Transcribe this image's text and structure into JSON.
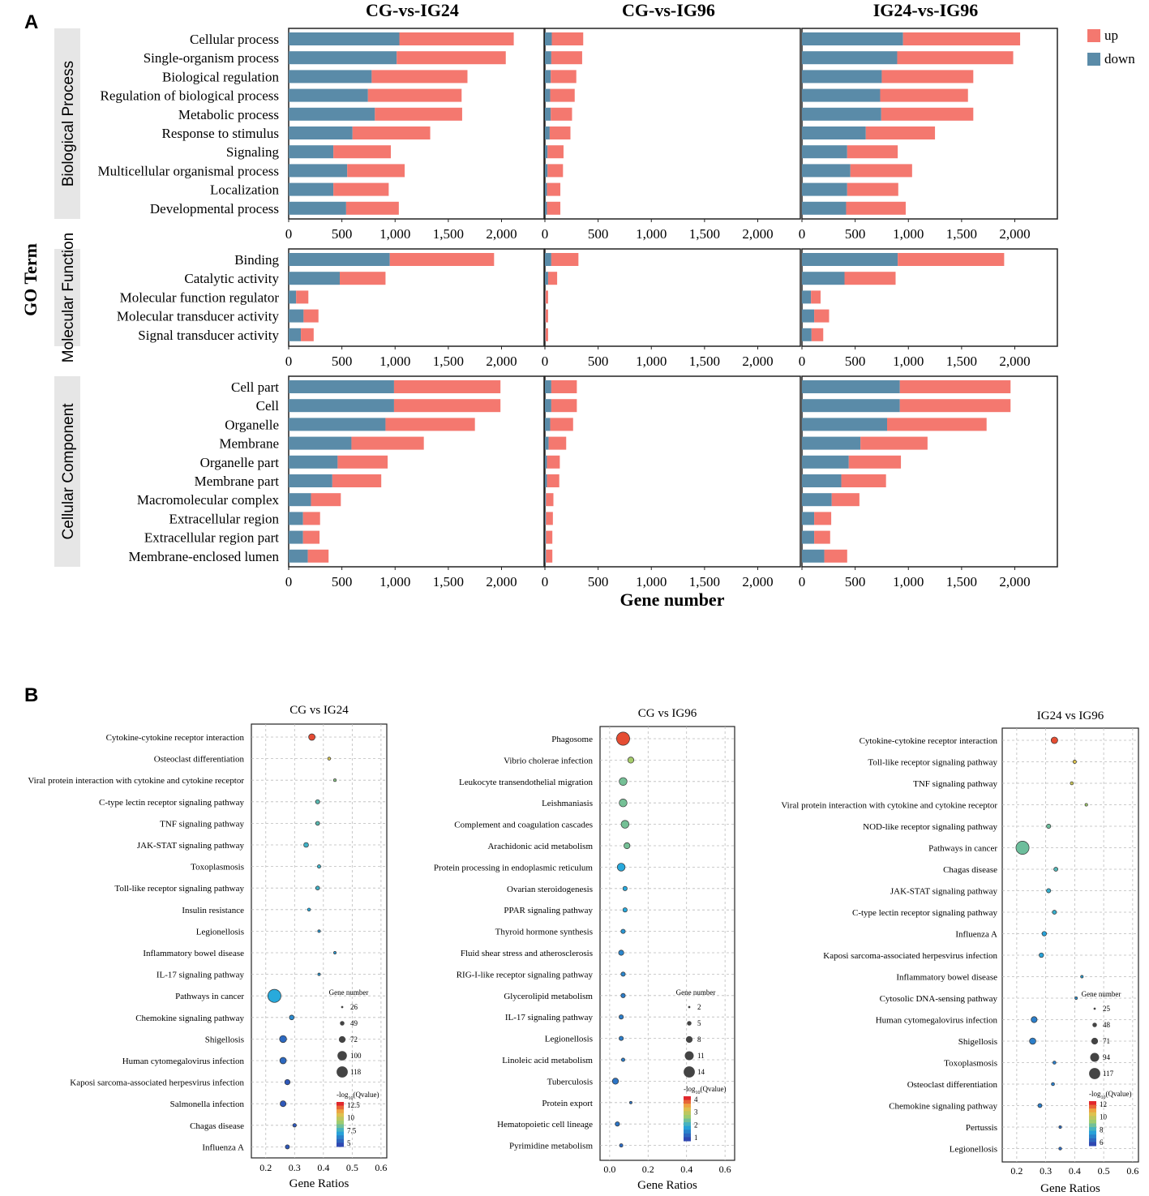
{
  "panel_labels": [
    "A",
    "B"
  ],
  "chart_data": [
    {
      "panel": "A",
      "type": "bar",
      "stacked": true,
      "orientation": "horizontal",
      "ylabel": "GO Term",
      "xlabel": "Gene number",
      "xlim": [
        0,
        2400
      ],
      "xticks": [
        0,
        500,
        1000,
        1500,
        2000
      ],
      "xtick_labels": [
        "0",
        "500",
        "1,000",
        "1,500",
        "2,000"
      ],
      "legend": {
        "position": "top-right",
        "entries": [
          {
            "name": "up",
            "color": "#f4786f"
          },
          {
            "name": "down",
            "color": "#5a8ba8"
          }
        ]
      },
      "comparisons": [
        "CG-vs-IG24",
        "CG-vs-IG96",
        "IG24-vs-IG96"
      ],
      "groups": [
        {
          "name": "Biological Process",
          "terms": [
            "Cellular process",
            "Single-organism process",
            "Biological regulation",
            "Regulation of biological process",
            "Metabolic process",
            "Response to stimulus",
            "Signaling",
            "Multicellular organismal process",
            "Localization",
            "Developmental process"
          ],
          "down": [
            [
              1040,
              1015,
              780,
              745,
              810,
              600,
              420,
              550,
              420,
              540
            ],
            [
              65,
              60,
              55,
              50,
              55,
              45,
              25,
              25,
              20,
              20
            ],
            [
              950,
              895,
              750,
              735,
              745,
              600,
              425,
              455,
              425,
              415
            ]
          ],
          "up": [
            [
              1075,
              1025,
              900,
              880,
              820,
              730,
              540,
              540,
              520,
              495
            ],
            [
              295,
              290,
              240,
              230,
              200,
              195,
              150,
              145,
              125,
              125
            ],
            [
              1100,
              1090,
              860,
              825,
              865,
              650,
              475,
              580,
              480,
              560
            ]
          ]
        },
        {
          "name": "Molecular Function",
          "terms": [
            "Binding",
            "Catalytic activity",
            "Molecular function regulator",
            "Molecular transducer activity",
            "Signal transducer activity"
          ],
          "down": [
            [
              950,
              480,
              70,
              140,
              115
            ],
            [
              60,
              30,
              5,
              5,
              5
            ],
            [
              900,
              400,
              85,
              115,
              90
            ]
          ],
          "up": [
            [
              980,
              430,
              115,
              140,
              120
            ],
            [
              255,
              85,
              25,
              25,
              25
            ],
            [
              1000,
              480,
              90,
              140,
              110
            ]
          ]
        },
        {
          "name": "Cellular Component",
          "terms": [
            "Cell part",
            "Cell",
            "Organelle",
            "Membrane",
            "Organelle part",
            "Membrane part",
            "Macromolecular complex",
            "Extracellular region",
            "Extracellular region part",
            "Membrane-enclosed lumen"
          ],
          "down": [
            [
              990,
              990,
              910,
              590,
              460,
              410,
              210,
              135,
              135,
              180
            ],
            [
              60,
              60,
              50,
              35,
              20,
              20,
              10,
              10,
              10,
              10
            ],
            [
              920,
              920,
              800,
              550,
              440,
              370,
              280,
              115,
              115,
              210
            ]
          ],
          "up": [
            [
              1000,
              1000,
              840,
              680,
              470,
              460,
              280,
              160,
              155,
              195
            ],
            [
              240,
              240,
              215,
              165,
              120,
              115,
              70,
              65,
              60,
              60
            ],
            [
              1040,
              1040,
              935,
              630,
              490,
              420,
              260,
              160,
              150,
              215
            ]
          ]
        }
      ]
    },
    {
      "panel": "B",
      "type": "scatter",
      "title": "CG vs IG24",
      "xlabel": "Gene Ratios",
      "xlim": [
        0.15,
        0.62
      ],
      "xticks": [
        0.2,
        0.3,
        0.4,
        0.5,
        0.6
      ],
      "xtick_labels": [
        "0.2",
        "0.3",
        "0.4",
        "0.5",
        "0.6"
      ],
      "size_legend_title": "Gene number",
      "size_legend": [
        26,
        49,
        72,
        100,
        118
      ],
      "size_range": [
        26,
        118
      ],
      "color_legend_title": "-log10(Qvalue)",
      "color_ticks": [
        "12.5",
        "10",
        "7.5",
        "5"
      ],
      "color_range": [
        4,
        14
      ],
      "terms": [
        "Cytokine-cytokine receptor interaction",
        "Osteoclast differentiation",
        "Viral protein interaction with cytokine and cytokine receptor",
        "C-type lectin receptor signaling pathway",
        "TNF signaling pathway",
        "JAK-STAT signaling pathway",
        "Toxoplasmosis",
        "Toll-like receptor signaling pathway",
        "Insulin resistance",
        "Legionellosis",
        "Inflammatory bowel disease",
        "IL-17 signaling pathway",
        "Pathways in cancer",
        "Chemokine signaling pathway",
        "Shigellosis",
        "Human cytomegalovirus infection",
        "Kaposi sarcoma-associated herpesvirus infection",
        "Salmonella infection",
        "Chagas disease",
        "Influenza A"
      ],
      "x": [
        0.36,
        0.42,
        0.44,
        0.38,
        0.38,
        0.34,
        0.385,
        0.38,
        0.35,
        0.385,
        0.44,
        0.385,
        0.23,
        0.29,
        0.26,
        0.26,
        0.275,
        0.26,
        0.3,
        0.275
      ],
      "gene_number": [
        60,
        30,
        27,
        40,
        38,
        45,
        33,
        38,
        30,
        27,
        26,
        26,
        118,
        45,
        65,
        60,
        50,
        55,
        35,
        40
      ],
      "neg_log10_q": [
        13.5,
        11,
        9,
        8,
        8,
        7.5,
        7.5,
        7.5,
        7,
        6.5,
        6.5,
        6.5,
        7,
        6,
        5,
        5,
        4.5,
        4.5,
        4.5,
        4.5
      ]
    },
    {
      "panel": "B",
      "type": "scatter",
      "title": "CG vs IG96",
      "xlabel": "Gene Ratios",
      "xlim": [
        -0.05,
        0.65
      ],
      "xticks": [
        0.0,
        0.2,
        0.4,
        0.6
      ],
      "xtick_labels": [
        "0.0",
        "0.2",
        "0.4",
        "0.6"
      ],
      "size_legend_title": "Gene number",
      "size_legend": [
        2,
        5,
        8,
        11,
        14
      ],
      "size_range": [
        2,
        14
      ],
      "color_legend_title": "-log10(Qvalue)",
      "color_ticks": [
        "4",
        "3",
        "2",
        "1"
      ],
      "color_range": [
        0.5,
        4.2
      ],
      "terms": [
        "Phagosome",
        "Vibrio cholerae infection",
        "Leukocyte transendothelial migration",
        "Leishmaniasis",
        "Complement and coagulation cascades",
        "Arachidonic acid metabolism",
        "Protein processing in endoplasmic reticulum",
        "Ovarian steroidogenesis",
        "PPAR signaling pathway",
        "Thyroid hormone synthesis",
        "Fluid shear stress and atherosclerosis",
        "RIG-I-like receptor signaling pathway",
        "Glycerolipid metabolism",
        "IL-17 signaling pathway",
        "Legionellosis",
        "Linoleic acid metabolism",
        "Tuberculosis",
        "Protein export",
        "Hematopoietic cell lineage",
        "Pyrimidine metabolism"
      ],
      "x": [
        0.07,
        0.11,
        0.07,
        0.07,
        0.08,
        0.09,
        0.06,
        0.08,
        0.08,
        0.07,
        0.06,
        0.07,
        0.07,
        0.06,
        0.06,
        0.07,
        0.03,
        0.11,
        0.04,
        0.06
      ],
      "gene_number": [
        14,
        6,
        8,
        8,
        8,
        6,
        8,
        4,
        4,
        4,
        5,
        4,
        4,
        4,
        4,
        3,
        6,
        2,
        4,
        3
      ],
      "neg_log10_q": [
        4,
        2.6,
        2.2,
        2.2,
        2.2,
        2.2,
        1.6,
        1.6,
        1.6,
        1.4,
        1.2,
        1.2,
        1.1,
        1.1,
        1.1,
        1.1,
        1,
        1,
        1,
        0.9
      ]
    },
    {
      "panel": "B",
      "type": "scatter",
      "title": "IG24 vs IG96",
      "xlabel": "Gene Ratios",
      "xlim": [
        0.15,
        0.62
      ],
      "xticks": [
        0.2,
        0.3,
        0.4,
        0.5,
        0.6
      ],
      "xtick_labels": [
        "0.2",
        "0.3",
        "0.4",
        "0.5",
        "0.6"
      ],
      "size_legend_title": "Gene number",
      "size_legend": [
        25,
        48,
        71,
        94,
        117
      ],
      "size_range": [
        25,
        117
      ],
      "color_legend_title": "-log10(Qvalue)",
      "color_ticks": [
        "12",
        "10",
        "8",
        "6"
      ],
      "color_range": [
        4,
        13
      ],
      "terms": [
        "Cytokine-cytokine receptor interaction",
        "Toll-like receptor signaling pathway",
        "TNF signaling pathway",
        "Viral protein interaction with cytokine and cytokine receptor",
        "NOD-like receptor signaling pathway",
        "Pathways in cancer",
        "Chagas disease",
        "JAK-STAT signaling pathway",
        "C-type lectin receptor signaling pathway",
        "Influenza A",
        "Kaposi sarcoma-associated herpesvirus infection",
        "Inflammatory bowel disease",
        "Cytosolic DNA-sensing pathway",
        "Human cytomegalovirus infection",
        "Shigellosis",
        "Toxoplasmosis",
        "Osteoclast differentiation",
        "Chemokine signaling pathway",
        "Pertussis",
        "Legionellosis"
      ],
      "x": [
        0.33,
        0.4,
        0.39,
        0.44,
        0.31,
        0.22,
        0.335,
        0.31,
        0.33,
        0.295,
        0.285,
        0.425,
        0.405,
        0.26,
        0.255,
        0.33,
        0.325,
        0.28,
        0.35,
        0.35
      ],
      "gene_number": [
        60,
        32,
        30,
        26,
        40,
        117,
        38,
        40,
        38,
        42,
        42,
        25,
        25,
        55,
        58,
        30,
        30,
        38,
        26,
        28
      ],
      "neg_log10_q": [
        12.5,
        10.5,
        10,
        9,
        8,
        8,
        7.5,
        7,
        7,
        6.5,
        6.5,
        6.5,
        6,
        5.5,
        5.5,
        5.5,
        5.5,
        5.5,
        5,
        5
      ]
    }
  ]
}
